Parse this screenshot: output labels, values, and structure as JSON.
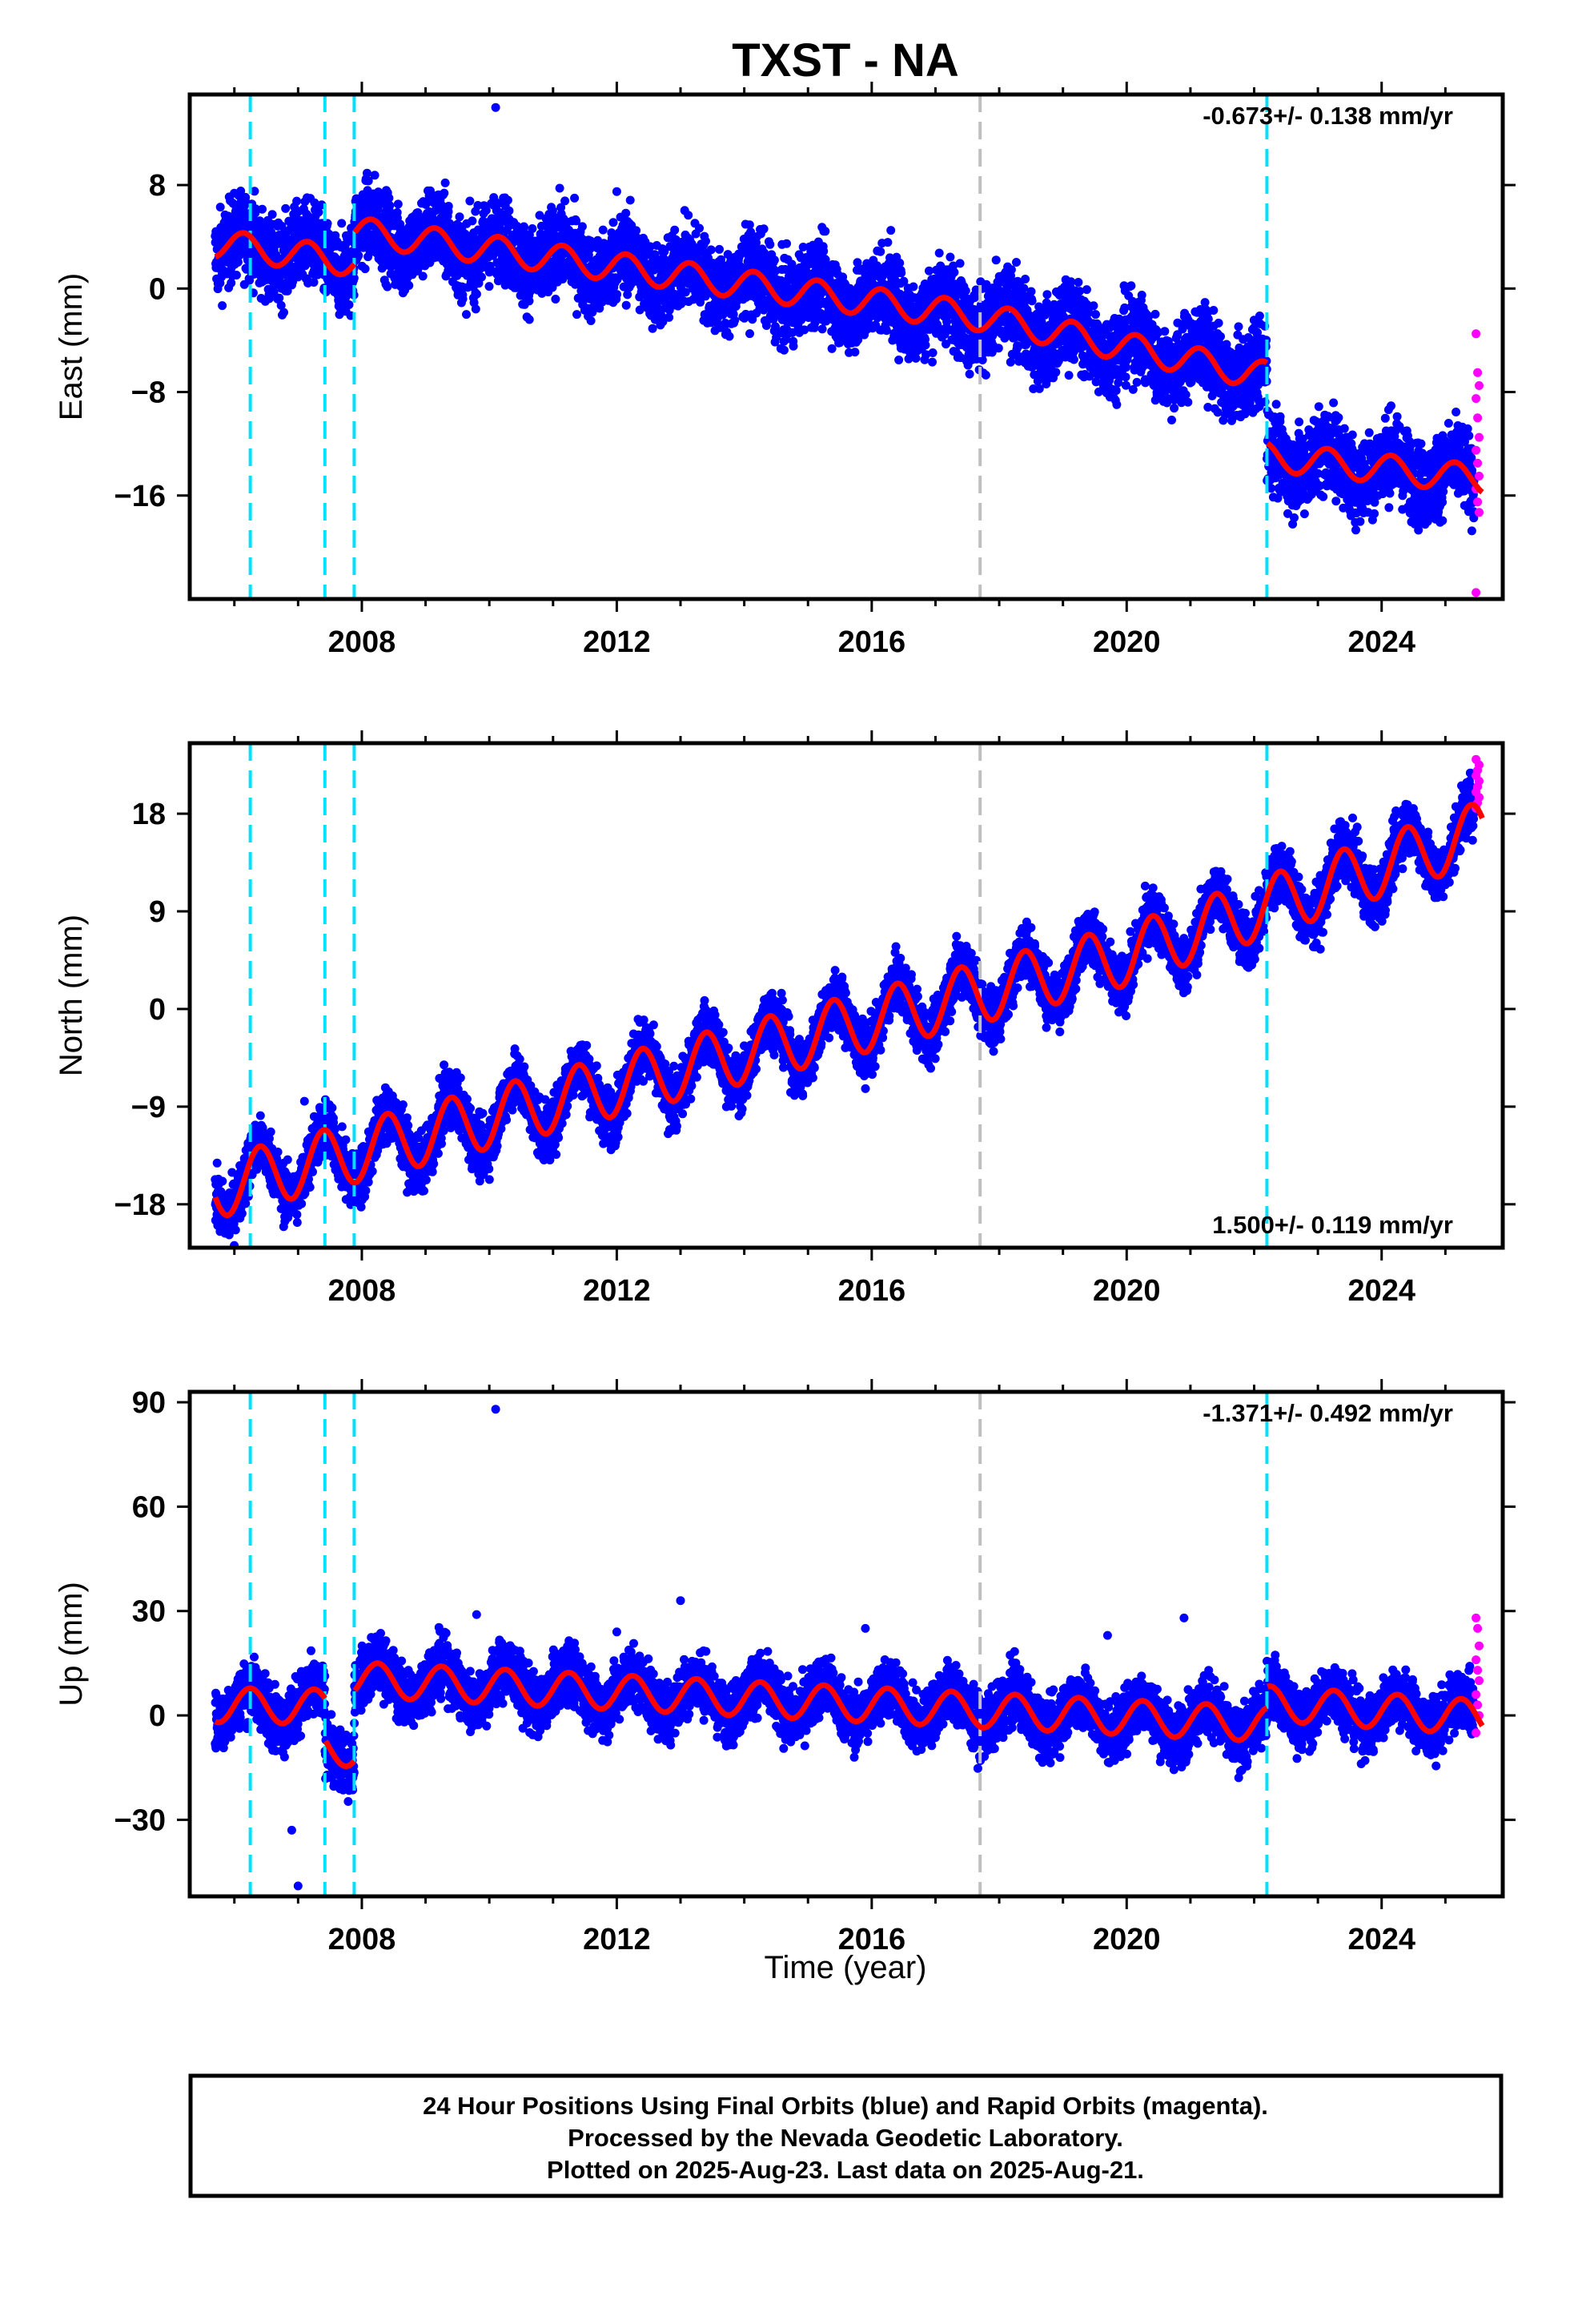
{
  "title": "TXST - NA",
  "xlabel": "Time (year)",
  "footer": {
    "line1": "24 Hour Positions Using Final Orbits (blue) and Rapid Orbits (magenta).",
    "line2": "Processed by the Nevada Geodetic Laboratory.",
    "line3": "Plotted on 2025-Aug-23. Last data on 2025-Aug-21."
  },
  "colors": {
    "final_orbits": "#0000ff",
    "rapid_orbits": "#ff00ff",
    "model_fit": "#ff0000",
    "equipment_change": "#00e0ff",
    "other_event": "#bfbfbf"
  },
  "chart_data": [
    {
      "type": "scatter",
      "component": "east",
      "ylabel": "East (mm)",
      "rate_text": "-0.673+/- 0.138 mm/yr",
      "rate_position": "top-right",
      "xlim": [
        2005.3,
        2025.9
      ],
      "ylim": [
        -24,
        15
      ],
      "xticks": [
        2008,
        2012,
        2016,
        2020,
        2024
      ],
      "yticks": [
        8,
        0,
        -8,
        -16
      ],
      "event_lines": {
        "cyan": [
          2006.25,
          2007.42,
          2007.88,
          2022.2
        ],
        "gray": [
          2017.7
        ]
      },
      "model": {
        "intercept": 3.5,
        "start": 2005.7,
        "trend": -0.673,
        "annual_amp": 1.1,
        "annual_phase": 0.2,
        "offsets": [
          {
            "year": 2007.88,
            "value": 2.4
          },
          {
            "year": 2022.2,
            "value": -6.2
          }
        ],
        "nonlinear": [
          {
            "start": 2017.7,
            "rate": -0.35
          },
          {
            "start": 2022.2,
            "rate": 0.5
          }
        ]
      },
      "scatter": {
        "final_noise": 1.6,
        "final_end": 2025.45,
        "rapid_values": [
          -3.5,
          -6.5,
          -7.5,
          -8.5,
          -10,
          -11.5,
          -12.5,
          -13.5,
          -14.5,
          -15.5,
          -16.5,
          -17.3,
          -23.5
        ]
      },
      "outliers": [
        [
          2010.1,
          14
        ],
        [
          2012.0,
          7.5
        ],
        [
          2016.3,
          4.5
        ]
      ]
    },
    {
      "type": "scatter",
      "component": "north",
      "ylabel": "North (mm)",
      "rate_text": "1.500+/- 0.119 mm/yr",
      "rate_position": "bottom-right",
      "xlim": [
        2005.3,
        2025.9
      ],
      "ylim": [
        -22,
        24.5
      ],
      "xticks": [
        2008,
        2012,
        2016,
        2020,
        2024
      ],
      "yticks": [
        18,
        9,
        0,
        -9,
        -18
      ],
      "event_lines": {
        "cyan": [
          2006.25,
          2007.42,
          2007.88,
          2022.2
        ],
        "gray": [
          2017.7
        ]
      },
      "model": {
        "intercept": -16.5,
        "start": 2005.7,
        "trend": 1.5,
        "annual_amp": 2.8,
        "annual_phase": 0.45,
        "offsets": [],
        "nonlinear": [
          {
            "start": 2020.0,
            "rate": 0.55
          }
        ]
      },
      "scatter": {
        "final_noise": 1.3,
        "final_end": 2025.45,
        "rapid_values": [
          18.5,
          19,
          19.5,
          20,
          20.5,
          21,
          21.5,
          22,
          22.5,
          23
        ]
      },
      "outliers": [
        [
          2007.1,
          -8.5
        ],
        [
          2018.5,
          7.5
        ]
      ]
    },
    {
      "type": "scatter",
      "component": "up",
      "ylabel": "Up (mm)",
      "rate_text": "-1.371+/- 0.492 mm/yr",
      "rate_position": "top-right",
      "xlim": [
        2005.3,
        2025.9
      ],
      "ylim": [
        -52,
        93
      ],
      "xticks": [
        2008,
        2012,
        2016,
        2020,
        2024
      ],
      "yticks": [
        90,
        60,
        30,
        0,
        -30
      ],
      "event_lines": {
        "cyan": [
          2006.25,
          2007.42,
          2007.88,
          2022.2
        ],
        "gray": [
          2017.7
        ]
      },
      "model": {
        "intercept": 3.0,
        "start": 2005.7,
        "trend": -0.3,
        "annual_amp": 5.0,
        "annual_phase": 0.3,
        "offsets": [
          {
            "year": 2007.42,
            "value": -12
          },
          {
            "year": 2007.88,
            "value": 20
          },
          {
            "year": 2022.2,
            "value": 6
          }
        ],
        "nonlinear": [
          {
            "start": 2007.88,
            "rate": -0.6
          },
          {
            "start": 2022.2,
            "rate": -0.3
          }
        ]
      },
      "scatter": {
        "final_noise": 4.2,
        "final_end": 2025.45,
        "rapid_values": [
          28,
          25,
          20,
          16,
          13,
          10,
          6,
          3,
          0,
          -5
        ]
      },
      "outliers": [
        [
          2010.1,
          88
        ],
        [
          2009.8,
          29
        ],
        [
          2013.0,
          33
        ],
        [
          2015.9,
          25
        ],
        [
          2007.0,
          -49
        ],
        [
          2006.9,
          -33
        ],
        [
          2019.7,
          23
        ],
        [
          2020.9,
          28
        ],
        [
          2012.0,
          24
        ]
      ]
    }
  ]
}
